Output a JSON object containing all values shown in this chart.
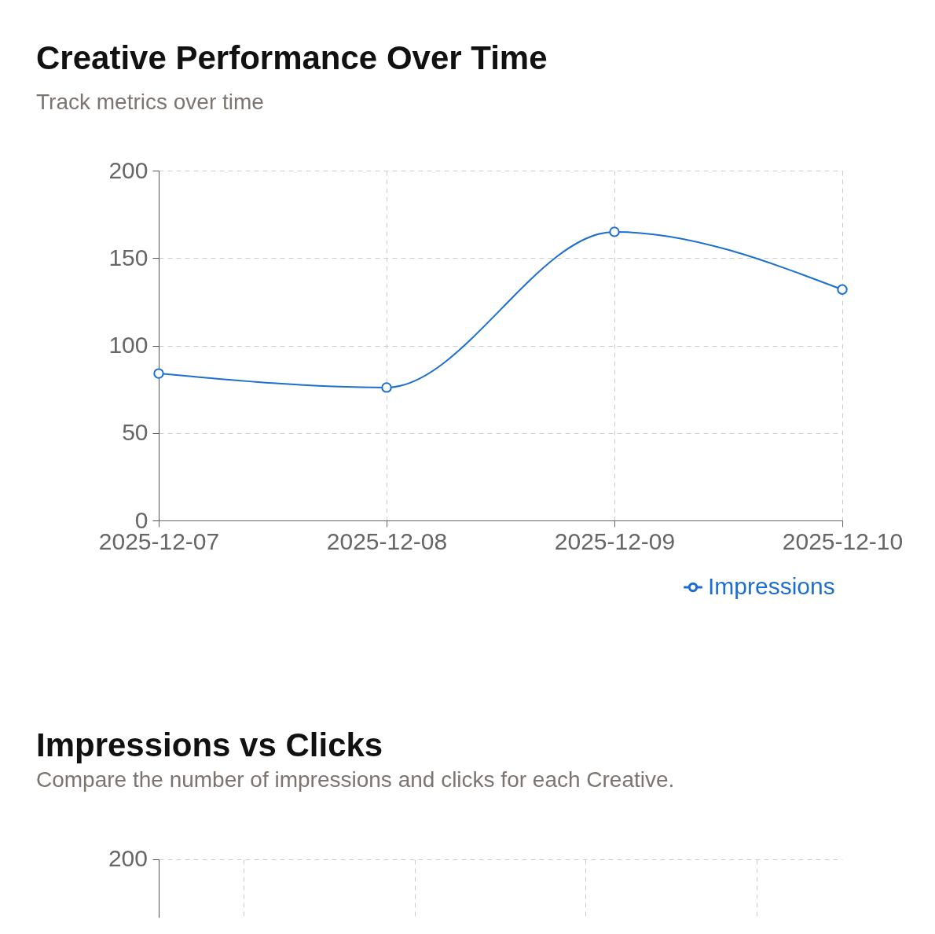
{
  "chart_data": [
    {
      "type": "line",
      "title": "Creative Performance Over Time",
      "subtitle": "Track metrics over time",
      "categories": [
        "2025-12-07",
        "2025-12-08",
        "2025-12-09",
        "2025-12-10"
      ],
      "series": [
        {
          "name": "Impressions",
          "color": "#1c6fd0",
          "values": [
            84,
            76,
            165,
            132
          ]
        }
      ],
      "ylim": [
        0,
        200
      ],
      "yticks": [
        0,
        50,
        100,
        150,
        200
      ],
      "grid": true,
      "legend": "bottom right",
      "marker": "circle",
      "line_style": "solid"
    },
    {
      "type": "other",
      "title": "Impressions vs Clicks",
      "subtitle": "Compare the number of impressions and clicks for each Creative.",
      "categories": [
        null,
        null,
        null,
        null
      ],
      "annotations": [
        "200"
      ]
    }
  ]
}
